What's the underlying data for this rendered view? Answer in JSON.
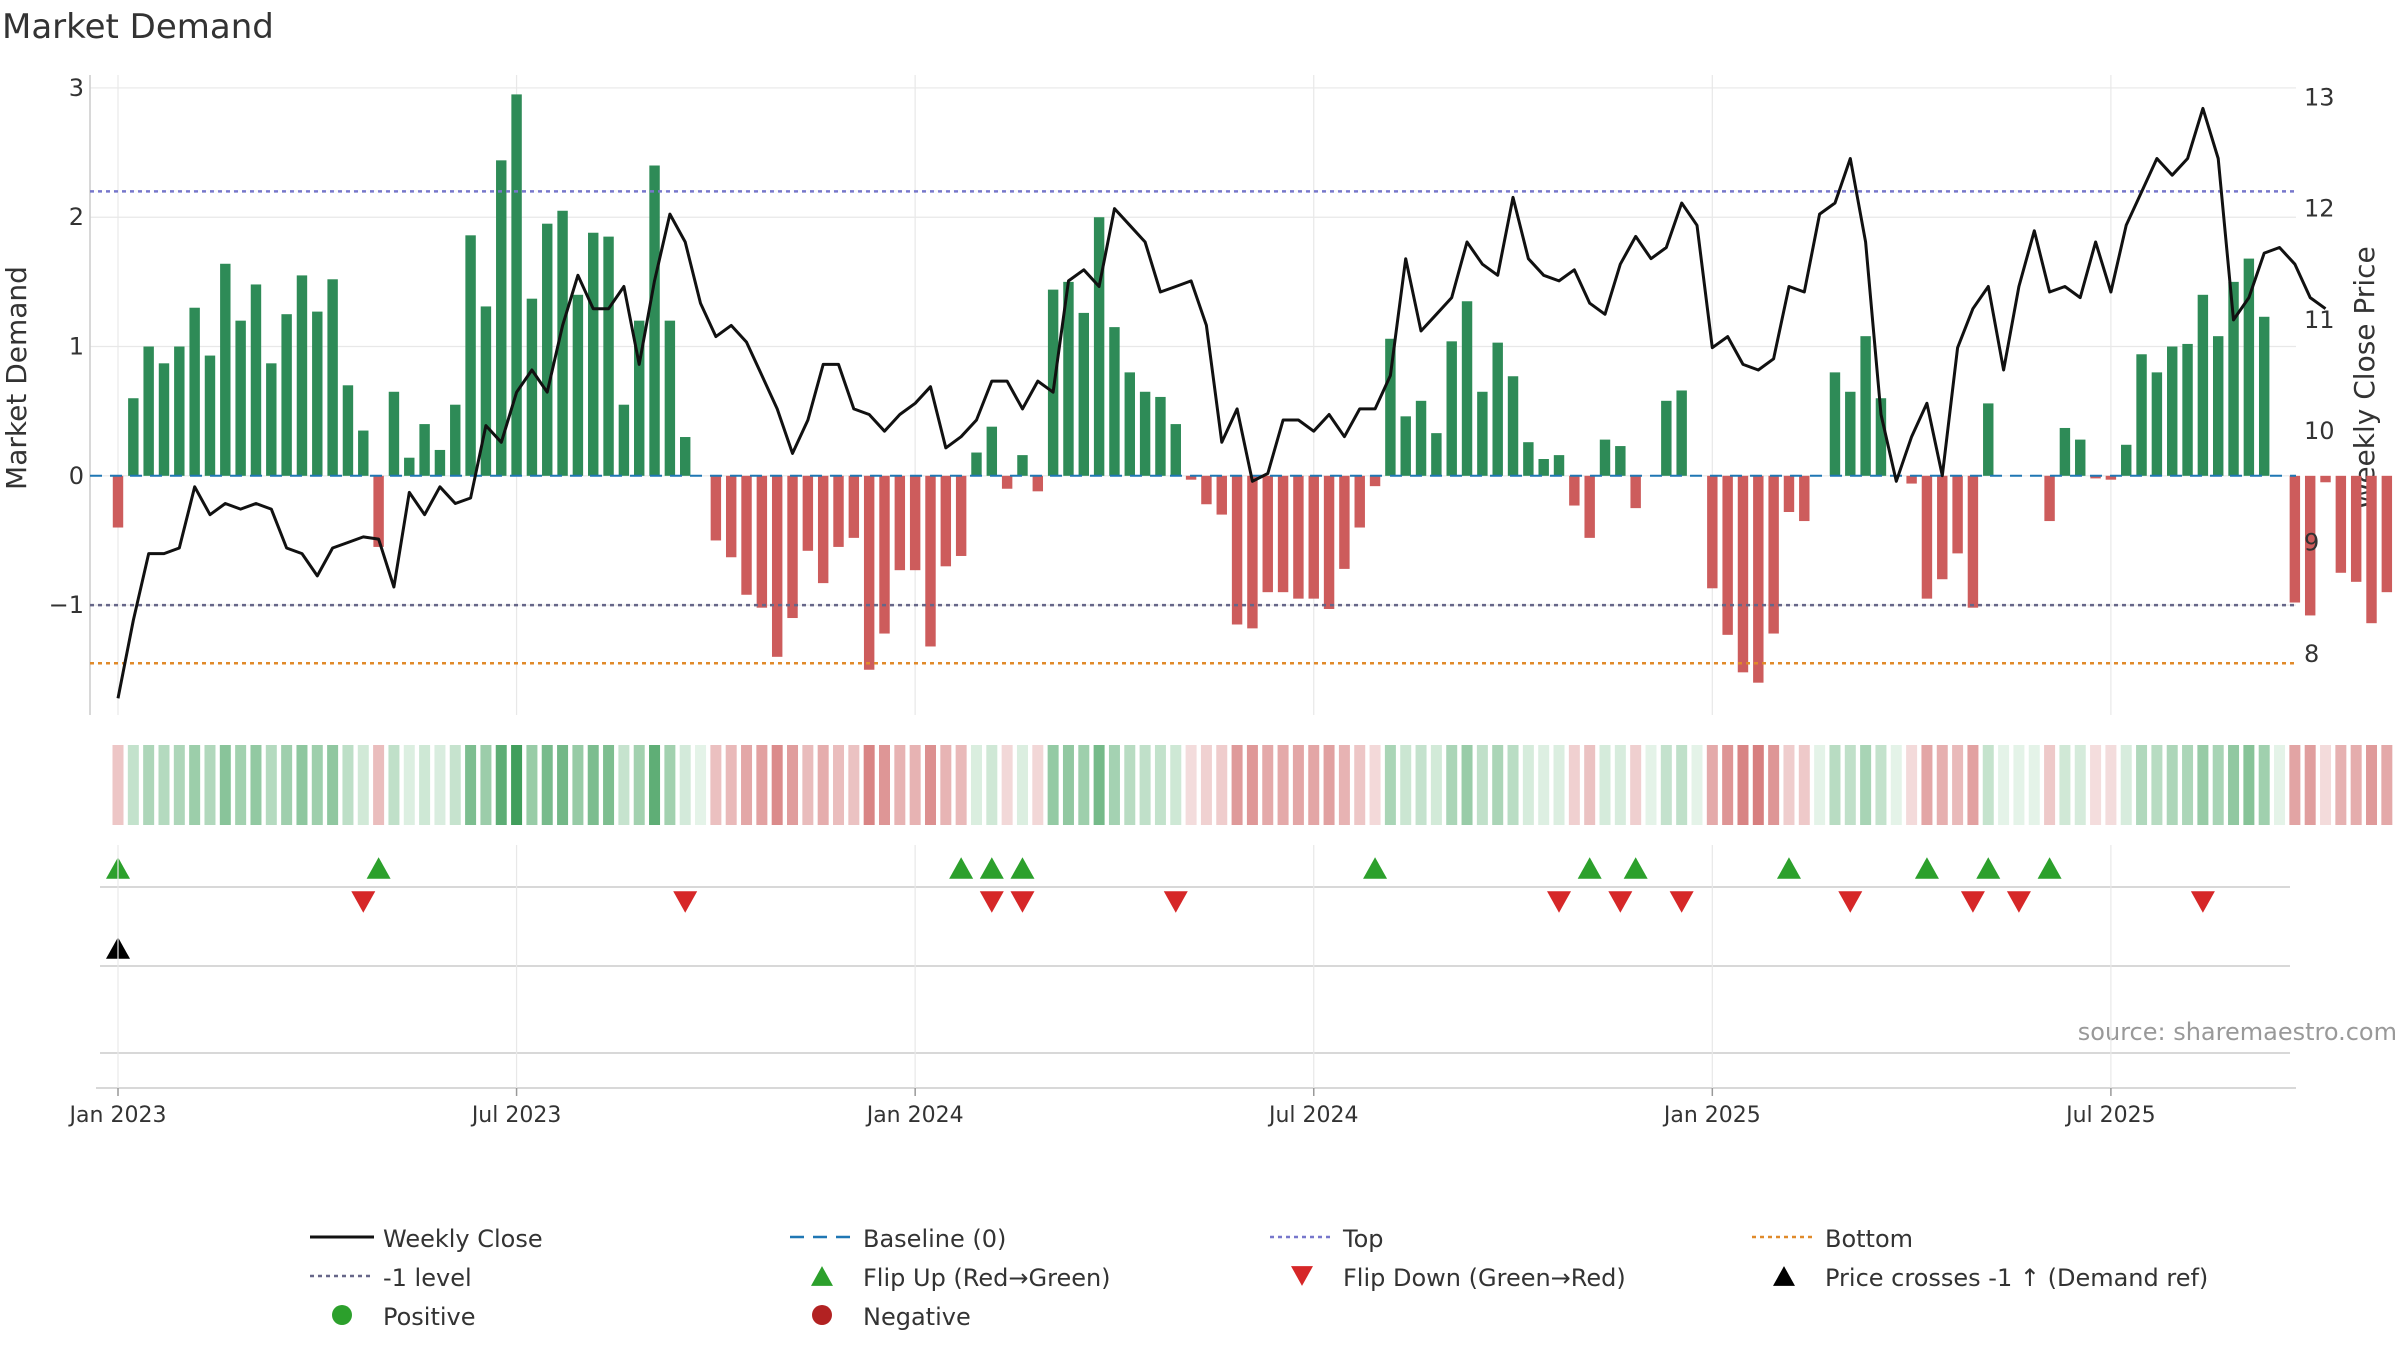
{
  "chart_data": {
    "type": "bar",
    "title": "Market Demand",
    "ylabel": "Market Demand",
    "y2label": "Weekly Close Price",
    "ylim": [
      -1.85,
      3.1
    ],
    "y2lim": [
      7.45,
      13.2
    ],
    "yticks": [
      -1,
      0,
      1,
      2,
      3
    ],
    "ytick_labels": [
      "−1",
      "0",
      "1",
      "2",
      "3"
    ],
    "y2ticks": [
      8,
      9,
      10,
      11,
      12,
      13
    ],
    "y2tick_labels": [
      "8",
      "9",
      "10",
      "11",
      "12",
      "13"
    ],
    "xtick_labels": [
      "Jan 2023",
      "Jul 2023",
      "Jan 2024",
      "Jul 2024",
      "Jan 2025",
      "Jul 2025"
    ],
    "xtick_weeks": [
      0,
      26,
      52,
      78,
      104,
      130
    ],
    "x_range_weeks": [
      -1.5,
      142
    ],
    "series": [
      {
        "name": "Market Demand",
        "values": [
          -0.4,
          0.6,
          1.0,
          0.87,
          1.0,
          1.3,
          0.93,
          1.64,
          1.2,
          1.48,
          0.87,
          1.25,
          1.55,
          1.27,
          1.52,
          0.7,
          0.35,
          -0.55,
          0.65,
          0.14,
          0.4,
          0.2,
          0.55,
          1.86,
          1.31,
          2.44,
          2.95,
          1.37,
          1.95,
          2.05,
          1.4,
          1.88,
          1.85,
          0.55,
          1.2,
          2.4,
          1.2,
          0.3,
          0.0,
          -0.5,
          -0.63,
          -0.92,
          -1.02,
          -1.4,
          -1.1,
          -0.58,
          -0.83,
          -0.55,
          -0.48,
          -1.5,
          -1.22,
          -0.73,
          -0.73,
          -1.32,
          -0.7,
          -0.62,
          0.18,
          0.38,
          -0.1,
          0.16,
          -0.12,
          1.44,
          1.5,
          1.26,
          2.0,
          1.15,
          0.8,
          0.65,
          0.61,
          0.4,
          -0.03,
          -0.22,
          -0.3,
          -1.15,
          -1.18,
          -0.9,
          -0.9,
          -0.95,
          -0.95,
          -1.03,
          -0.72,
          -0.4,
          -0.08,
          1.06,
          0.46,
          0.58,
          0.33,
          1.04,
          1.35,
          0.65,
          1.03,
          0.77,
          0.26,
          0.13,
          0.16,
          -0.23,
          -0.48,
          0.28,
          0.23,
          -0.25,
          0.0,
          0.58,
          0.66,
          0.0,
          -0.87,
          -1.23,
          -1.52,
          -1.6,
          -1.22,
          -0.28,
          -0.35,
          0.0,
          0.8,
          0.65,
          1.08,
          0.6,
          0.0,
          -0.06,
          -0.95,
          -0.8,
          -0.6,
          -1.02,
          0.56,
          0.0,
          0.0,
          0.0,
          -0.35,
          0.37,
          0.28,
          -0.02,
          -0.03,
          0.24,
          0.94,
          0.8,
          1.0,
          1.02,
          1.4,
          1.08,
          1.5,
          1.68,
          1.23,
          0.0,
          -0.98,
          -1.08,
          -0.05,
          -0.75,
          -0.82,
          -1.14,
          -0.9
        ]
      },
      {
        "name": "Weekly Close",
        "values": [
          7.6,
          8.3,
          8.9,
          8.9,
          8.95,
          9.5,
          9.25,
          9.35,
          9.3,
          9.35,
          9.3,
          8.95,
          8.9,
          8.7,
          8.95,
          9.0,
          9.05,
          9.03,
          8.6,
          9.45,
          9.25,
          9.5,
          9.35,
          9.4,
          10.05,
          9.9,
          10.35,
          10.55,
          10.35,
          10.95,
          11.4,
          11.1,
          11.1,
          11.3,
          10.6,
          11.35,
          11.95,
          11.7,
          11.15,
          10.85,
          10.95,
          10.8,
          10.5,
          10.2,
          9.8,
          10.1,
          10.6,
          10.6,
          10.2,
          10.15,
          10.0,
          10.15,
          10.25,
          10.4,
          9.85,
          9.95,
          10.1,
          10.45,
          10.45,
          10.2,
          10.45,
          10.35,
          11.35,
          11.45,
          11.3,
          12.0,
          11.85,
          11.7,
          11.25,
          11.3,
          11.35,
          10.95,
          9.9,
          10.2,
          9.55,
          9.62,
          10.1,
          10.1,
          10.0,
          10.15,
          9.95,
          10.2,
          10.2,
          10.5,
          11.55,
          10.9,
          11.05,
          11.2,
          11.7,
          11.5,
          11.4,
          12.1,
          11.55,
          11.4,
          11.35,
          11.45,
          11.15,
          11.05,
          11.5,
          11.75,
          11.55,
          11.65,
          12.05,
          11.85,
          10.75,
          10.85,
          10.6,
          10.55,
          10.65,
          11.3,
          11.25,
          11.95,
          12.05,
          12.45,
          11.7,
          10.15,
          9.55,
          9.95,
          10.25,
          9.6,
          10.75,
          11.1,
          11.3,
          10.55,
          11.3,
          11.8,
          11.25,
          11.3,
          11.2,
          11.7,
          11.25,
          11.85,
          12.15,
          12.45,
          12.3,
          12.45,
          12.9,
          12.45,
          11.0,
          11.2,
          11.6,
          11.65,
          11.5,
          11.2,
          11.1
        ]
      }
    ],
    "reference_lines": {
      "top": 2.2,
      "minus_one": -1.0,
      "bottom": -1.45,
      "baseline": 0
    },
    "flip_up_weeks": [
      0,
      17,
      55,
      57,
      59,
      82,
      96,
      99,
      109,
      118,
      122,
      126
    ],
    "flip_down_weeks": [
      16,
      37,
      57,
      59,
      69,
      94,
      98,
      102,
      113,
      121,
      124,
      136
    ],
    "price_cross_weeks": [
      0
    ],
    "colors": {
      "positive": "#2e8b57",
      "negative": "#cd5c5c",
      "close": "#111111",
      "top": "#7777cc",
      "minus_one": "#666688",
      "bottom": "#e08a2a",
      "baseline": "#1f77b4",
      "flip_up": "#2ca02c",
      "flip_down": "#d62728",
      "cross": "#000000",
      "legend_positive": "#2ca02c",
      "legend_negative": "#b22222",
      "grid": "#e8e8e8",
      "axis": "#cccccc",
      "text": "#333333"
    },
    "legend": [
      {
        "label": "Weekly Close",
        "kind": "line",
        "color": "#111111"
      },
      {
        "label": "Baseline (0)",
        "kind": "dash",
        "color": "#1f77b4"
      },
      {
        "label": "Top",
        "kind": "dot",
        "color": "#7777cc"
      },
      {
        "label": "Bottom",
        "kind": "dot",
        "color": "#e08a2a"
      },
      {
        "label": "-1 level",
        "kind": "dot",
        "color": "#666688"
      },
      {
        "label": "Flip Up (Red→Green)",
        "kind": "tri-up",
        "color": "#2ca02c"
      },
      {
        "label": "Flip Down (Green→Red)",
        "kind": "tri-down",
        "color": "#d62728"
      },
      {
        "label": "Price crosses -1 ↑ (Demand ref)",
        "kind": "tri-up",
        "color": "#000000"
      },
      {
        "label": "Positive",
        "kind": "circle",
        "color": "#2ca02c"
      },
      {
        "label": "Negative",
        "kind": "circle",
        "color": "#b22222"
      }
    ],
    "source": "source: sharemaestro.com"
  }
}
